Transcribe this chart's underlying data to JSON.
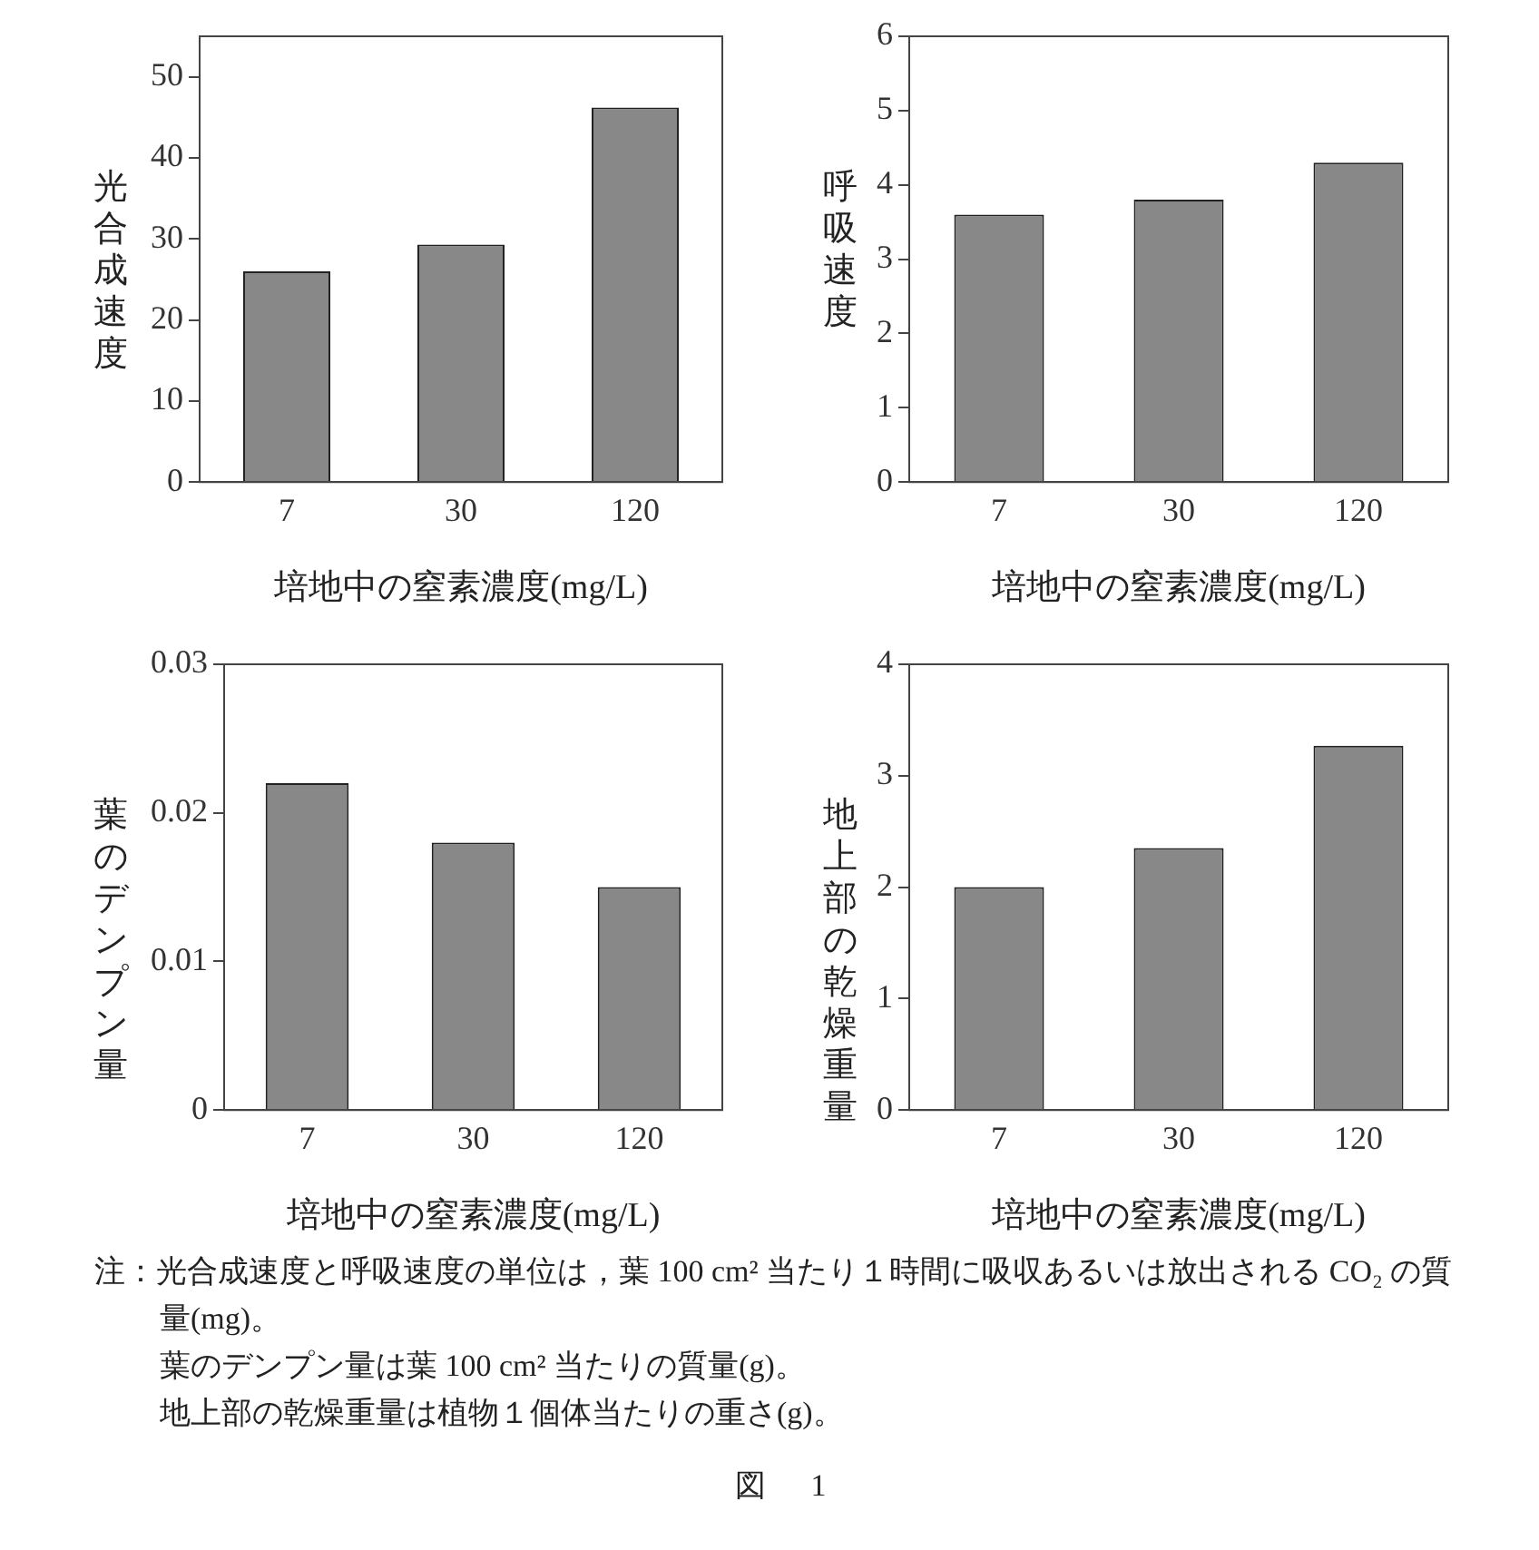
{
  "chart_data": [
    {
      "type": "bar",
      "ylabel": "光合成速度",
      "xlabel": "培地中の窒素濃度(mg/L)",
      "categories": [
        "7",
        "30",
        "120"
      ],
      "values": [
        26,
        29.3,
        46.2
      ],
      "color": "#888888",
      "ylim": [
        0,
        55
      ],
      "yticks": [
        0,
        10,
        20,
        30,
        40,
        50
      ],
      "grid": false
    },
    {
      "type": "bar",
      "ylabel": "呼吸速度",
      "xlabel": "培地中の窒素濃度(mg/L)",
      "categories": [
        "7",
        "30",
        "120"
      ],
      "values": [
        3.6,
        3.8,
        4.3
      ],
      "color": "#888888",
      "ylim": [
        0,
        6
      ],
      "yticks": [
        0,
        1,
        2,
        3,
        4,
        5,
        6
      ],
      "grid": false
    },
    {
      "type": "bar",
      "ylabel": "葉のデンプン量",
      "xlabel": "培地中の窒素濃度(mg/L)",
      "categories": [
        "7",
        "30",
        "120"
      ],
      "values": [
        0.022,
        0.018,
        0.015
      ],
      "color": "#888888",
      "ylim": [
        0,
        0.03
      ],
      "yticks": [
        {
          "value": 0,
          "label": "0"
        },
        0.01,
        0.02,
        0.03
      ],
      "grid": false
    },
    {
      "type": "bar",
      "ylabel": "地上部の乾燥重量",
      "xlabel": "培地中の窒素濃度(mg/L)",
      "categories": [
        "7",
        "30",
        "120"
      ],
      "values": [
        2.0,
        2.35,
        3.27
      ],
      "color": "#888888",
      "ylim": [
        0,
        4
      ],
      "yticks": [
        0,
        1,
        2,
        3,
        4
      ],
      "grid": false,
      "annotations": [
        "注：光合成速度と呼吸速度の単位は，葉 100 cm² 当たり１時間に吸収あるいは放出される CO₂ の質量(mg)。",
        "葉のデンプン量は葉 100 cm² 当たりの質量(g)。",
        "地上部の乾燥重量は植物１個体当たりの重さ(g)。",
        "図　1"
      ]
    }
  ]
}
